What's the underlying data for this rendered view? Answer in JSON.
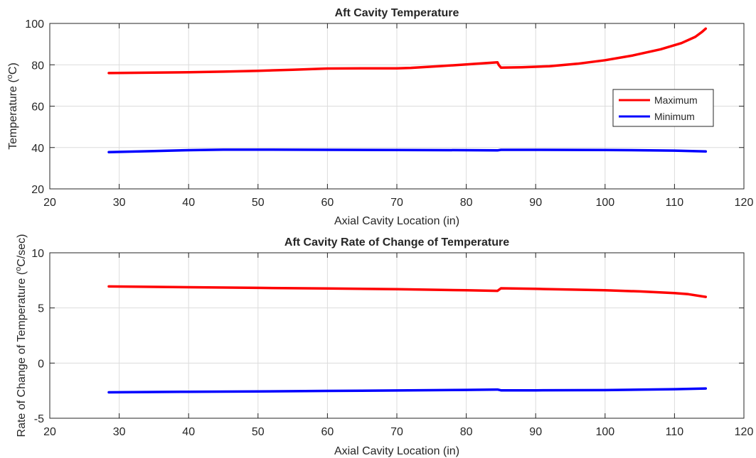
{
  "chart_data": [
    {
      "type": "line",
      "title": "Aft Cavity Temperature",
      "xlabel": "Axial Cavity Location (in)",
      "ylabel": "Temperature (°C)",
      "xlim": [
        20,
        120
      ],
      "ylim": [
        20,
        100
      ],
      "xticks": [
        20,
        30,
        40,
        50,
        60,
        70,
        80,
        90,
        100,
        110,
        120
      ],
      "yticks": [
        20,
        40,
        60,
        80,
        100
      ],
      "grid": true,
      "legend": "right",
      "series": [
        {
          "name": "Maximum",
          "color": "#ff0000",
          "x": [
            28.5,
            35,
            40,
            45,
            50,
            55,
            60,
            65,
            70,
            72,
            76,
            80,
            84.5,
            84.7,
            85,
            88,
            92,
            96,
            100,
            104,
            108,
            111,
            113,
            114,
            114.5
          ],
          "y": [
            76,
            76.2,
            76.4,
            76.7,
            77.1,
            77.6,
            78.2,
            78.3,
            78.3,
            78.5,
            79.3,
            80.2,
            81.2,
            79.8,
            78.6,
            78.8,
            79.3,
            80.5,
            82.2,
            84.5,
            87.5,
            90.5,
            93.5,
            96,
            97.5
          ]
        },
        {
          "name": "Minimum",
          "color": "#0000ff",
          "x": [
            28.5,
            35,
            40,
            45,
            50,
            60,
            70,
            80,
            84.5,
            85,
            90,
            100,
            110,
            114.5
          ],
          "y": [
            37.8,
            38.3,
            38.7,
            39,
            39,
            38.9,
            38.8,
            38.7,
            38.6,
            38.9,
            38.9,
            38.8,
            38.5,
            38.1
          ]
        }
      ]
    },
    {
      "type": "line",
      "title": "Aft Cavity Rate of Change of Temperature",
      "xlabel": "Axial Cavity Location (in)",
      "ylabel": "Rate of Change of Temperature (°C/sec)",
      "xlim": [
        20,
        120
      ],
      "ylim": [
        -5,
        10
      ],
      "xticks": [
        20,
        30,
        40,
        50,
        60,
        70,
        80,
        90,
        100,
        110,
        120
      ],
      "yticks": [
        -5,
        0,
        5,
        10
      ],
      "grid": true,
      "series": [
        {
          "name": "Maximum",
          "color": "#ff0000",
          "x": [
            28.5,
            40,
            50,
            60,
            70,
            80,
            84.5,
            85,
            90,
            100,
            105,
            110,
            112,
            114.5
          ],
          "y": [
            6.95,
            6.88,
            6.82,
            6.76,
            6.7,
            6.6,
            6.55,
            6.78,
            6.73,
            6.6,
            6.5,
            6.35,
            6.25,
            6.0
          ]
        },
        {
          "name": "Minimum",
          "color": "#0000ff",
          "x": [
            28.5,
            40,
            50,
            60,
            70,
            80,
            84.5,
            85,
            90,
            100,
            110,
            114.5
          ],
          "y": [
            -2.65,
            -2.6,
            -2.57,
            -2.52,
            -2.48,
            -2.43,
            -2.4,
            -2.47,
            -2.47,
            -2.45,
            -2.37,
            -2.3
          ]
        }
      ]
    }
  ]
}
